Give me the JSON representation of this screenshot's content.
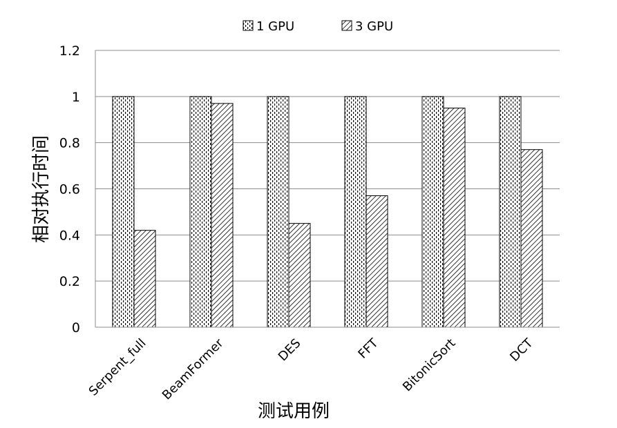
{
  "chart_data": {
    "type": "bar",
    "categories": [
      "Serpent_full",
      "BeamFormer",
      "DES",
      "FFT",
      "BitonicSort",
      "DCT"
    ],
    "series": [
      {
        "name": "1 GPU",
        "values": [
          1,
          1,
          1,
          1,
          1,
          1
        ],
        "pattern": "dotted"
      },
      {
        "name": "3 GPU",
        "values": [
          0.42,
          0.97,
          0.45,
          0.57,
          0.95,
          0.77
        ],
        "pattern": "diagonal-hatch"
      }
    ],
    "xlabel": "测试用例",
    "ylabel": "相对执行时间",
    "ylim": [
      0,
      1.2
    ],
    "yticks": [
      "0",
      "0.2",
      "0.4",
      "0.6",
      "0.8",
      "1",
      "1.2"
    ],
    "grid": true,
    "legend_position": "top-center",
    "colors": {
      "bar_fill": "#ffffff",
      "pattern": "#000000",
      "grid": "#8c8c8c"
    }
  }
}
